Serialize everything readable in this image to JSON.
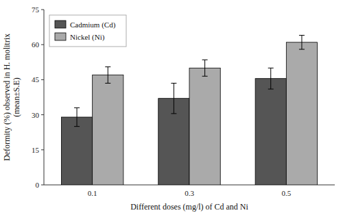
{
  "chart_data": {
    "type": "bar",
    "categories": [
      "0.1",
      "0.3",
      "0.5"
    ],
    "series": [
      {
        "name": "Cadmium (Cd)",
        "color": "#555555",
        "values": [
          29.0,
          37.0,
          45.5
        ],
        "errors": [
          4.0,
          6.5,
          4.5
        ]
      },
      {
        "name": "Nickel (Ni)",
        "color": "#aaaaaa",
        "values": [
          47.0,
          50.0,
          61.0
        ],
        "errors": [
          3.5,
          3.5,
          3.0
        ]
      }
    ],
    "x_label": "Different doses (mg/l) of Cd and Ni",
    "y_label": "Deformity (%) observed in H. molitrix\n(mean±S.E)",
    "ylim": [
      0,
      75
    ],
    "yticks": [
      0,
      15,
      30,
      45,
      60,
      75
    ],
    "legend": "upper left"
  }
}
